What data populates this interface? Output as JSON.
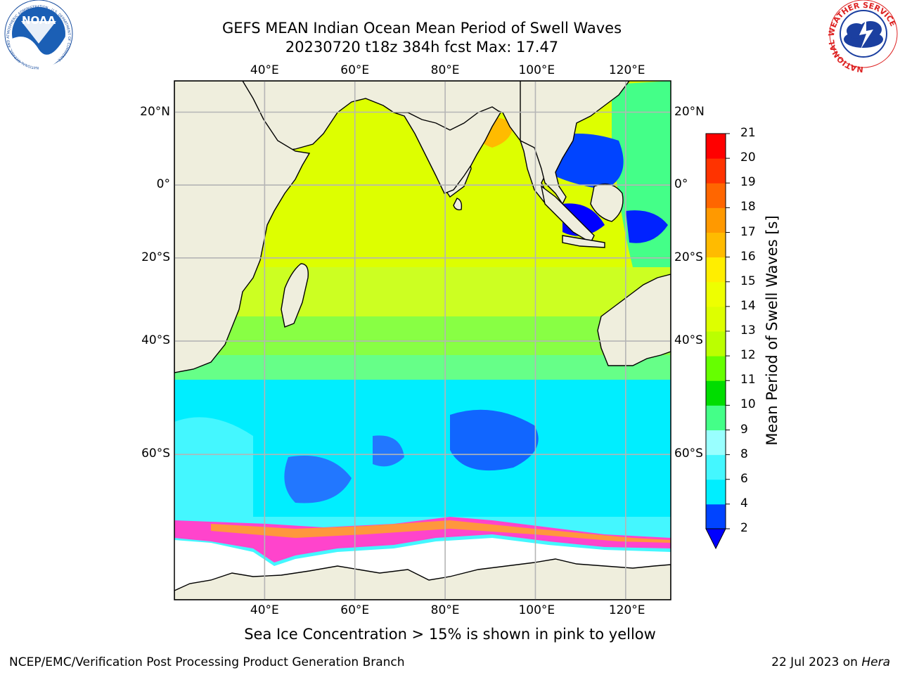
{
  "title": {
    "line1": "GEFS MEAN Indian Ocean Mean Period of Swell Waves",
    "line2": "20230720 t18z 384h fcst   Max: 17.47"
  },
  "map": {
    "extent_lon": [
      20,
      130
    ],
    "extent_lat": [
      -75,
      28
    ],
    "lon_ticks": [
      {
        "lon": 40,
        "label": "40°E"
      },
      {
        "lon": 60,
        "label": "60°E"
      },
      {
        "lon": 80,
        "label": "80°E"
      },
      {
        "lon": 100,
        "label": "100°E"
      },
      {
        "lon": 120,
        "label": "120°E"
      }
    ],
    "lat_ticks": [
      {
        "lat": 20,
        "label": "20°N"
      },
      {
        "lat": 0,
        "label": "0°"
      },
      {
        "lat": -20,
        "label": "20°S"
      },
      {
        "lat": -40,
        "label": "40°S"
      },
      {
        "lat": -60,
        "label": "60°S"
      }
    ],
    "land_color": "#efeedd",
    "ice_color": "#ff44cc"
  },
  "colorbar": {
    "label": "Mean Period of Swell Waves [s]",
    "ticks": [
      "2",
      "4",
      "6",
      "8",
      "9",
      "10",
      "11",
      "12",
      "13",
      "14",
      "15",
      "16",
      "17",
      "18",
      "19",
      "20",
      "21"
    ],
    "colors": [
      "#0044ff",
      "#00eeff",
      "#44f7ff",
      "#99ffff",
      "#44ff88",
      "#00dd00",
      "#66ff00",
      "#bbff00",
      "#ddff00",
      "#eeff00",
      "#ffee00",
      "#ffbb00",
      "#ff9900",
      "#ff6600",
      "#ff3300",
      "#ff0000"
    ],
    "extend_color": "#0000ff"
  },
  "caption": "Sea Ice Concentration > 15% is shown in pink to yellow",
  "footer": {
    "left": "NCEP/EMC/Verification Post Processing Product Generation Branch",
    "right_date": "22 Jul 2023 on ",
    "right_machine": "Hera"
  },
  "logos": {
    "noaa": "NOAA",
    "noaa_ring": "NATIONAL OCEANIC AND ATMOSPHERIC ADMINISTRATION · U.S. DEPARTMENT OF COMMERCE",
    "nws_ring": "NATIONAL WEATHER SERVICE"
  }
}
